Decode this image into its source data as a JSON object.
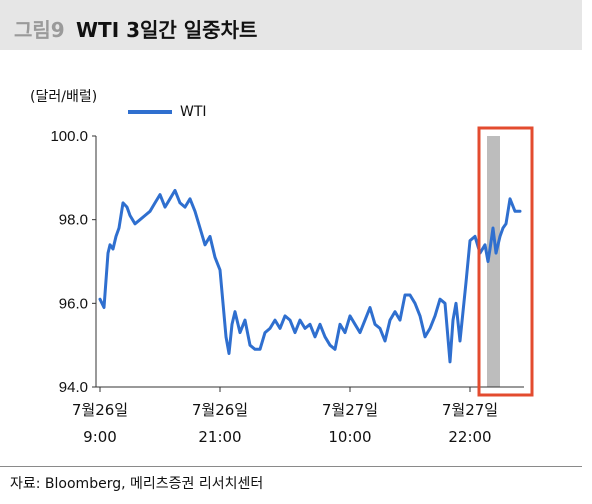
{
  "figure": {
    "number": "그림9",
    "title": "WTI 3일간 일중차트"
  },
  "y_unit": "(달러/배럴)",
  "source": "자료: Bloomberg, 메리츠증권 리서치센터",
  "colors": {
    "series": "#2f6fcf",
    "highlight_box": "#e34b2f",
    "highlight_band": "#bdbdbd",
    "title_bar": "#e6e6e6"
  },
  "chart_data": {
    "type": "line",
    "title": "WTI 3일간 일중차트",
    "ylabel": "(달러/배럴)",
    "ylim": [
      94.0,
      100.0
    ],
    "yticks": [
      "94.0",
      "96.0",
      "98.0",
      "100.0"
    ],
    "xlim": [
      0,
      42
    ],
    "xticks": [
      {
        "x": 0,
        "line1": "7월26일",
        "line2": "9:00"
      },
      {
        "x": 12,
        "line1": "7월26일",
        "line2": "21:00"
      },
      {
        "x": 25,
        "line1": "7월27일",
        "line2": "10:00"
      },
      {
        "x": 37,
        "line1": "7월27일",
        "line2": "22:00"
      }
    ],
    "legend": {
      "entries": [
        "WTI"
      ],
      "position": "top-left"
    },
    "grid": false,
    "highlight": {
      "x_start": 38.7,
      "x_end": 40.0
    },
    "series": [
      {
        "name": "WTI",
        "x": [
          0,
          0.4,
          0.8,
          1,
          1.3,
          1.6,
          1.9,
          2.3,
          2.7,
          3,
          3.5,
          4,
          4.5,
          5,
          5.5,
          6,
          6.5,
          7,
          7.5,
          8,
          8.5,
          9,
          9.5,
          10,
          10.5,
          11,
          11.5,
          12,
          12.3,
          12.6,
          12.9,
          13.2,
          13.5,
          14,
          14.5,
          15,
          15.5,
          16,
          16.5,
          17,
          17.5,
          18,
          18.5,
          19,
          19.5,
          20,
          20.5,
          21,
          21.5,
          22,
          22.5,
          23,
          23.5,
          24,
          24.5,
          25,
          25.5,
          26,
          26.5,
          27,
          27.5,
          28,
          28.5,
          29,
          29.5,
          30,
          30.5,
          31,
          31.5,
          32,
          32.5,
          33,
          33.5,
          34,
          34.5,
          35,
          35.3,
          35.6,
          36,
          36.3,
          36.6,
          37,
          37.5,
          38,
          38.5,
          38.8,
          39,
          39.3,
          39.6,
          40,
          40.3,
          40.6,
          41,
          41.5,
          42
        ],
        "y": [
          96.1,
          95.9,
          97.2,
          97.4,
          97.3,
          97.6,
          97.8,
          98.4,
          98.3,
          98.1,
          97.9,
          98.0,
          98.1,
          98.2,
          98.4,
          98.6,
          98.3,
          98.5,
          98.7,
          98.4,
          98.3,
          98.5,
          98.2,
          97.8,
          97.4,
          97.6,
          97.1,
          96.8,
          96.0,
          95.2,
          94.8,
          95.5,
          95.8,
          95.3,
          95.6,
          95.0,
          94.9,
          94.9,
          95.3,
          95.4,
          95.6,
          95.4,
          95.7,
          95.6,
          95.3,
          95.6,
          95.4,
          95.5,
          95.2,
          95.5,
          95.2,
          95.0,
          94.9,
          95.5,
          95.3,
          95.7,
          95.5,
          95.3,
          95.6,
          95.9,
          95.5,
          95.4,
          95.1,
          95.6,
          95.8,
          95.6,
          96.2,
          96.2,
          96.0,
          95.7,
          95.2,
          95.4,
          95.7,
          96.1,
          96.0,
          94.6,
          95.6,
          96.0,
          95.1,
          95.8,
          96.5,
          97.5,
          97.6,
          97.2,
          97.4,
          97.0,
          97.3,
          97.8,
          97.2,
          97.6,
          97.8,
          97.9,
          98.5,
          98.2,
          98.2
        ]
      }
    ]
  }
}
